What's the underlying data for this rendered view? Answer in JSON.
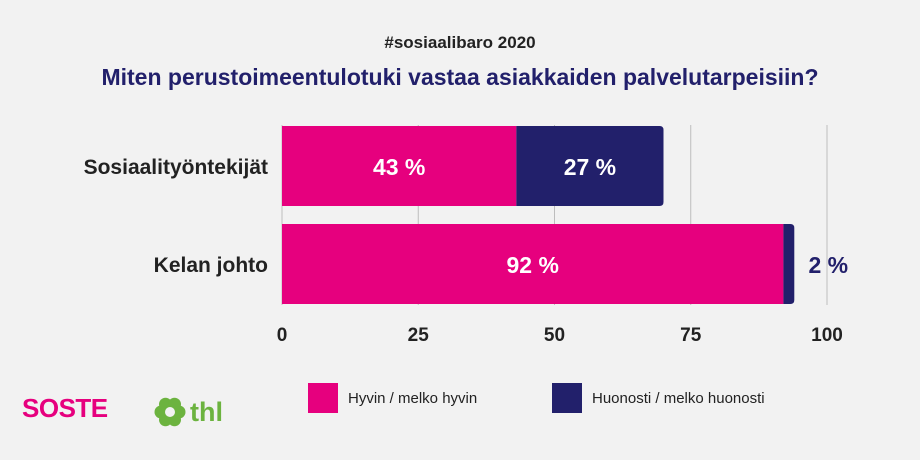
{
  "header": {
    "subtitle": "#sosiaalibaro 2020",
    "title": "Miten perustoimeentulotuki vastaa asiakkaiden palvelutarpeisiin?"
  },
  "colors": {
    "pink": "#e6007e",
    "navy": "#22206b",
    "title": "#22206b",
    "text": "#222222",
    "grid": "#bdbdbd",
    "thl_green": "#6cb33f"
  },
  "chart_data": {
    "type": "bar",
    "orientation": "horizontal",
    "stacked": true,
    "categories": [
      "Sosiaalityöntekijät",
      "Kelan johto"
    ],
    "series": [
      {
        "name": "Hyvin / melko hyvin",
        "values": [
          43,
          92
        ],
        "labels": [
          "43 %",
          "92 %"
        ],
        "color": "#e6007e"
      },
      {
        "name": "Huonosti / melko huonosti",
        "values": [
          27,
          2
        ],
        "labels": [
          "27 %",
          "2 %"
        ],
        "color": "#22206b"
      }
    ],
    "xlim": [
      0,
      100
    ],
    "xticks": [
      "0",
      "25",
      "50",
      "75",
      "100"
    ],
    "grid": true,
    "legend": "bottom"
  },
  "logos": {
    "soste": "SOSTE",
    "thl": "thl"
  }
}
